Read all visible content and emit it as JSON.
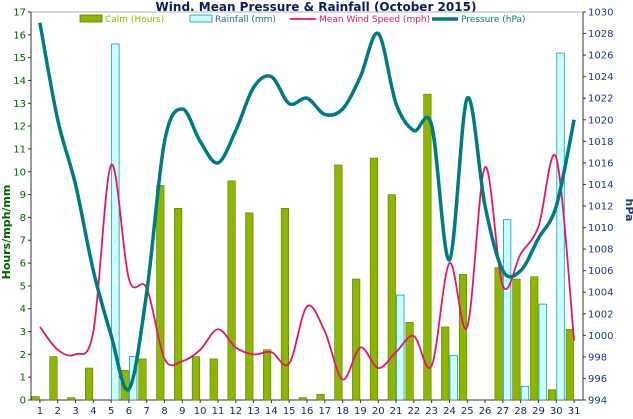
{
  "chart_data": {
    "type": "bar",
    "title": "Wind. Mean Pressure & Rainfall (October 2015)",
    "ylabel": "Hours/mph/mm",
    "y2label": "hPa",
    "ylim": [
      0,
      17
    ],
    "y2lim": [
      994,
      1030
    ],
    "yticks": [
      "0",
      "1",
      "2",
      "3",
      "4",
      "5",
      "6",
      "7",
      "8",
      "9",
      "10",
      "11",
      "12",
      "13",
      "14",
      "15",
      "16",
      "17"
    ],
    "y2ticks": [
      "994",
      "996",
      "998",
      "1000",
      "1002",
      "1004",
      "1006",
      "1008",
      "1010",
      "1012",
      "1014",
      "1016",
      "1018",
      "1020",
      "1022",
      "1024",
      "1026",
      "1028",
      "1030"
    ],
    "categories": [
      "1",
      "2",
      "3",
      "4",
      "5",
      "6",
      "7",
      "8",
      "9",
      "10",
      "11",
      "12",
      "13",
      "14",
      "15",
      "16",
      "17",
      "18",
      "19",
      "20",
      "21",
      "22",
      "23",
      "24",
      "25",
      "26",
      "27",
      "28",
      "29",
      "30",
      "31"
    ],
    "series": [
      {
        "name": "Calm (Hours)",
        "type": "bar",
        "axis": "left",
        "color": "#8db600",
        "values": [
          0.15,
          1.9,
          0.1,
          1.4,
          0,
          1.3,
          1.8,
          9.4,
          8.4,
          1.9,
          1.8,
          9.6,
          8.2,
          2.2,
          8.4,
          0.1,
          0.25,
          10.3,
          5.3,
          10.6,
          9.0,
          3.4,
          13.4,
          3.2,
          5.5,
          0,
          5.8,
          5.3,
          5.4,
          0.45,
          3.1
        ]
      },
      {
        "name": "Rainfall (mm)",
        "type": "bar",
        "axis": "left",
        "color": "#ccffff",
        "values": [
          0,
          0,
          0,
          0,
          15.6,
          1.9,
          0,
          0,
          0,
          0,
          0,
          0,
          0,
          0,
          0,
          0,
          0,
          0,
          0,
          0,
          4.6,
          0,
          0,
          1.95,
          0,
          0,
          7.9,
          0.6,
          4.2,
          15.2,
          0
        ]
      },
      {
        "name": "Mean Wind Speed (mph)",
        "type": "line",
        "axis": "left",
        "color": "#e0186c",
        "values": [
          3.2,
          2.2,
          2.0,
          3.0,
          10.3,
          5.3,
          4.9,
          1.8,
          1.7,
          2.2,
          3.1,
          2.3,
          2.0,
          2.1,
          1.6,
          4.1,
          3.0,
          0.9,
          2.3,
          1.4,
          2.1,
          2.8,
          1.5,
          6.0,
          3.2,
          10.2,
          5.0,
          6.4,
          7.6,
          10.6,
          2.6
        ]
      },
      {
        "name": "Pressure (hPa)",
        "type": "line",
        "axis": "right",
        "color": "#007b80",
        "values": [
          1029,
          1020,
          1014,
          1006,
          1000,
          995,
          1004,
          1018,
          1021,
          1018,
          1016,
          1019,
          1023,
          1024,
          1021.5,
          1022,
          1020.5,
          1021,
          1024,
          1028,
          1021.5,
          1019,
          1019.5,
          1007,
          1022,
          1012,
          1006,
          1006,
          1009,
          1012,
          1020
        ]
      }
    ],
    "grid": false,
    "legend": "top"
  }
}
